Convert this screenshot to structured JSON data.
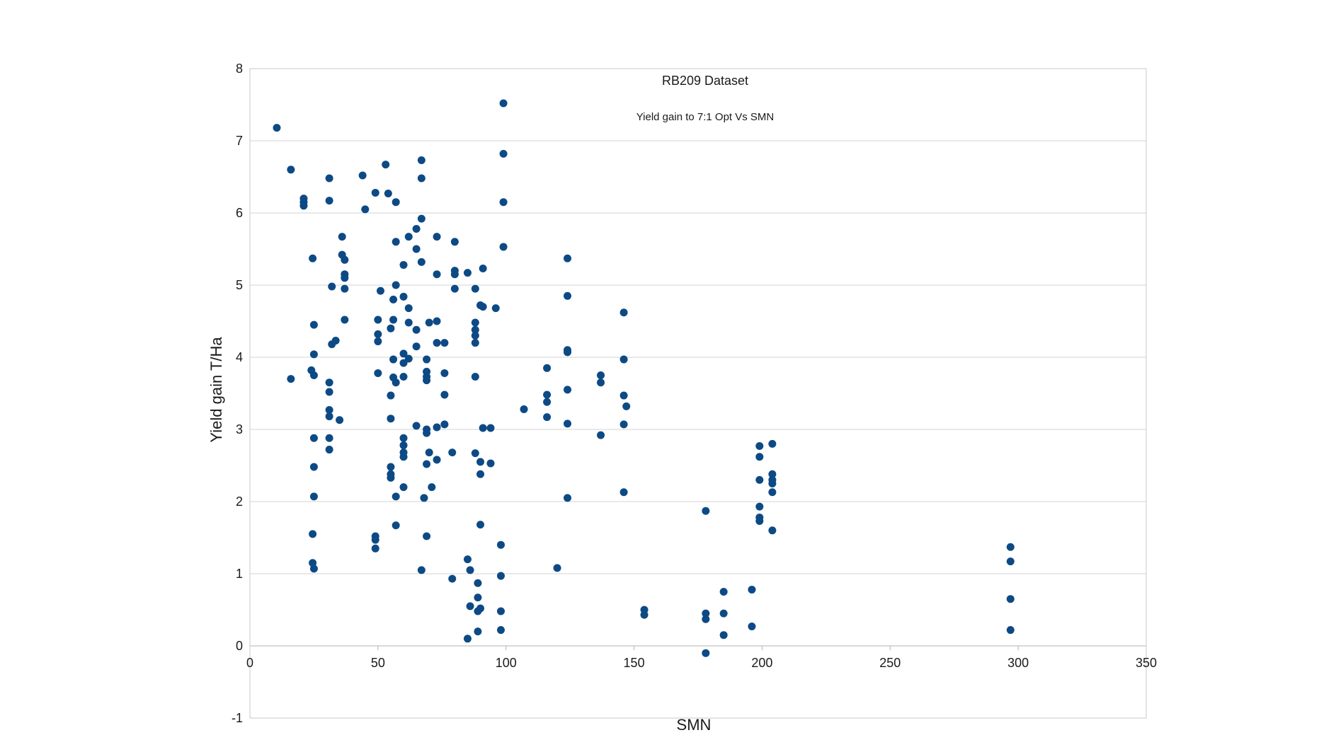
{
  "chart_data": {
    "type": "scatter",
    "title": "RB209 Dataset",
    "subtitle": "Yield gain to 7:1 Opt Vs SMN",
    "xlabel": "SMN",
    "ylabel": "Yield gain T/Ha",
    "xlim": [
      0,
      350
    ],
    "ylim": [
      -1,
      8
    ],
    "xticks": [
      "0",
      "50",
      "100",
      "150",
      "200",
      "250",
      "300",
      "350"
    ],
    "yticks": [
      "-1",
      "0",
      "1",
      "2",
      "3",
      "4",
      "5",
      "6",
      "7",
      "8"
    ],
    "grid": "horizontal",
    "legend": "none",
    "marker_color": "#0d4a85",
    "points": [
      [
        10.5,
        7.18
      ],
      [
        16,
        6.6
      ],
      [
        16,
        3.7
      ],
      [
        21,
        6.2
      ],
      [
        21,
        6.15
      ],
      [
        21,
        6.1
      ],
      [
        24,
        3.82
      ],
      [
        24.5,
        5.37
      ],
      [
        25,
        3.75
      ],
      [
        25,
        4.04
      ],
      [
        25,
        4.45
      ],
      [
        25,
        2.88
      ],
      [
        25,
        2.48
      ],
      [
        25,
        2.07
      ],
      [
        24.5,
        1.55
      ],
      [
        24.5,
        1.15
      ],
      [
        25,
        1.07
      ],
      [
        31,
        6.48
      ],
      [
        31,
        6.17
      ],
      [
        31,
        3.65
      ],
      [
        31,
        3.52
      ],
      [
        31,
        3.27
      ],
      [
        31,
        3.18
      ],
      [
        31,
        2.88
      ],
      [
        31,
        2.72
      ],
      [
        32,
        4.98
      ],
      [
        32,
        4.18
      ],
      [
        33.5,
        4.23
      ],
      [
        35,
        3.13
      ],
      [
        36,
        5.67
      ],
      [
        36,
        5.42
      ],
      [
        37,
        5.35
      ],
      [
        37,
        5.15
      ],
      [
        37,
        5.1
      ],
      [
        37,
        4.95
      ],
      [
        37,
        4.52
      ],
      [
        44,
        6.52
      ],
      [
        45,
        6.05
      ],
      [
        49,
        6.28
      ],
      [
        50,
        4.52
      ],
      [
        50,
        4.32
      ],
      [
        50,
        4.22
      ],
      [
        50,
        3.78
      ],
      [
        49,
        1.52
      ],
      [
        49,
        1.47
      ],
      [
        49,
        1.35
      ],
      [
        53,
        6.67
      ],
      [
        54,
        6.27
      ],
      [
        51,
        4.92
      ],
      [
        55,
        4.4
      ],
      [
        55,
        3.47
      ],
      [
        55,
        3.15
      ],
      [
        55,
        2.48
      ],
      [
        55,
        2.38
      ],
      [
        55,
        2.33
      ],
      [
        56,
        4.8
      ],
      [
        56,
        4.52
      ],
      [
        56,
        3.97
      ],
      [
        56,
        3.72
      ],
      [
        57,
        6.15
      ],
      [
        57,
        5.6
      ],
      [
        57,
        5.0
      ],
      [
        57,
        3.65
      ],
      [
        57,
        2.07
      ],
      [
        57,
        1.67
      ],
      [
        60,
        5.28
      ],
      [
        60,
        4.84
      ],
      [
        60,
        4.05
      ],
      [
        60,
        3.92
      ],
      [
        60,
        3.73
      ],
      [
        60,
        2.88
      ],
      [
        60,
        2.78
      ],
      [
        60,
        2.68
      ],
      [
        60,
        2.62
      ],
      [
        60,
        2.2
      ],
      [
        62,
        5.67
      ],
      [
        62,
        4.68
      ],
      [
        62,
        4.48
      ],
      [
        62,
        3.98
      ],
      [
        65,
        5.78
      ],
      [
        65,
        5.5
      ],
      [
        65,
        4.38
      ],
      [
        65,
        4.15
      ],
      [
        65,
        3.05
      ],
      [
        67,
        6.73
      ],
      [
        67,
        6.48
      ],
      [
        67,
        5.92
      ],
      [
        67,
        5.32
      ],
      [
        67,
        1.05
      ],
      [
        68,
        2.05
      ],
      [
        69,
        3.97
      ],
      [
        69,
        3.8
      ],
      [
        69,
        3.73
      ],
      [
        69,
        3.68
      ],
      [
        69,
        3.0
      ],
      [
        69,
        2.95
      ],
      [
        69,
        2.52
      ],
      [
        69,
        1.52
      ],
      [
        70,
        4.48
      ],
      [
        70,
        2.68
      ],
      [
        71,
        2.2
      ],
      [
        73,
        5.67
      ],
      [
        73,
        5.15
      ],
      [
        73,
        4.5
      ],
      [
        73,
        4.2
      ],
      [
        73,
        3.03
      ],
      [
        73,
        2.58
      ],
      [
        76,
        4.2
      ],
      [
        76,
        3.78
      ],
      [
        76,
        3.48
      ],
      [
        76,
        3.07
      ],
      [
        79,
        0.93
      ],
      [
        79,
        2.68
      ],
      [
        80,
        5.6
      ],
      [
        80,
        5.2
      ],
      [
        80,
        5.15
      ],
      [
        80,
        4.95
      ],
      [
        85,
        5.17
      ],
      [
        85,
        1.2
      ],
      [
        85,
        0.1
      ],
      [
        86,
        1.05
      ],
      [
        86,
        0.55
      ],
      [
        88,
        4.95
      ],
      [
        88,
        4.48
      ],
      [
        88,
        4.38
      ],
      [
        88,
        4.3
      ],
      [
        88,
        4.2
      ],
      [
        88,
        3.73
      ],
      [
        88,
        2.67
      ],
      [
        89,
        0.87
      ],
      [
        89,
        0.67
      ],
      [
        89,
        0.48
      ],
      [
        89,
        0.2
      ],
      [
        90,
        4.72
      ],
      [
        90,
        2.55
      ],
      [
        90,
        2.38
      ],
      [
        90,
        1.68
      ],
      [
        90,
        0.52
      ],
      [
        91,
        5.23
      ],
      [
        91,
        4.7
      ],
      [
        91,
        3.02
      ],
      [
        94,
        3.02
      ],
      [
        94,
        2.53
      ],
      [
        96,
        4.68
      ],
      [
        98,
        1.4
      ],
      [
        98,
        0.97
      ],
      [
        98,
        0.48
      ],
      [
        98,
        0.22
      ],
      [
        99,
        7.52
      ],
      [
        99,
        6.82
      ],
      [
        99,
        6.15
      ],
      [
        99,
        5.53
      ],
      [
        107,
        3.28
      ],
      [
        116,
        3.85
      ],
      [
        116,
        3.48
      ],
      [
        116,
        3.38
      ],
      [
        116,
        3.17
      ],
      [
        120,
        1.08
      ],
      [
        124,
        5.37
      ],
      [
        124,
        4.85
      ],
      [
        124,
        4.1
      ],
      [
        124,
        4.07
      ],
      [
        124,
        3.55
      ],
      [
        124,
        3.08
      ],
      [
        124,
        2.05
      ],
      [
        137,
        3.75
      ],
      [
        137,
        3.65
      ],
      [
        137,
        2.92
      ],
      [
        146,
        4.62
      ],
      [
        146,
        3.97
      ],
      [
        146,
        3.47
      ],
      [
        147,
        3.32
      ],
      [
        146,
        3.07
      ],
      [
        146,
        2.13
      ],
      [
        154,
        0.5
      ],
      [
        154,
        0.43
      ],
      [
        178,
        1.87
      ],
      [
        178,
        0.45
      ],
      [
        178,
        0.37
      ],
      [
        178,
        -0.1
      ],
      [
        185,
        0.75
      ],
      [
        185,
        0.45
      ],
      [
        185,
        0.15
      ],
      [
        196,
        0.78
      ],
      [
        196,
        0.27
      ],
      [
        199,
        2.77
      ],
      [
        199,
        2.62
      ],
      [
        199,
        2.3
      ],
      [
        199,
        1.93
      ],
      [
        199,
        1.78
      ],
      [
        199,
        1.73
      ],
      [
        204,
        2.8
      ],
      [
        204,
        2.38
      ],
      [
        204,
        2.3
      ],
      [
        204,
        2.25
      ],
      [
        204,
        2.13
      ],
      [
        204,
        1.6
      ],
      [
        297,
        1.37
      ],
      [
        297,
        1.17
      ],
      [
        297,
        0.65
      ],
      [
        297,
        0.22
      ]
    ]
  }
}
